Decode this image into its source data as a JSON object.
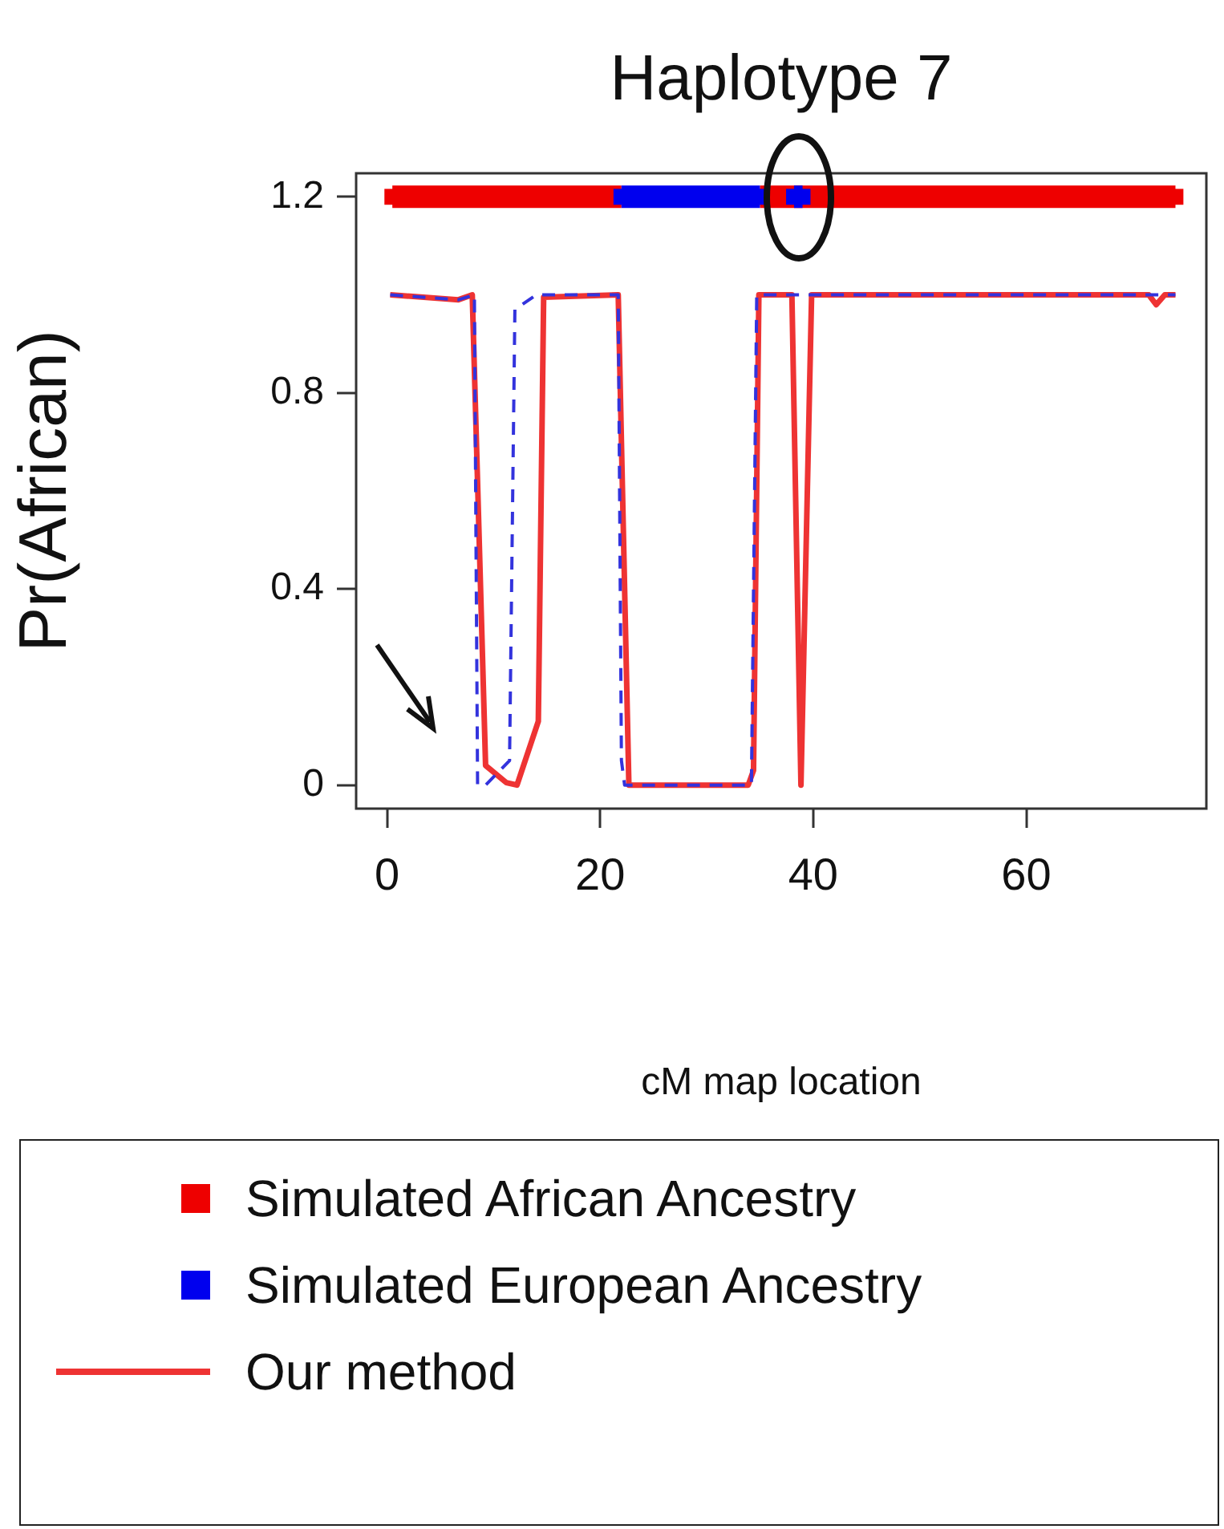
{
  "chart_data": {
    "type": "line",
    "title": "Haplotype 7",
    "xlabel": "cM map location",
    "ylabel": "Pr(African)",
    "xlim": [
      -2.9,
      76.9
    ],
    "ylim": [
      -0.048,
      1.248
    ],
    "xticks": [
      0,
      20,
      40,
      60
    ],
    "yticks": [
      0,
      0.4,
      0.8,
      1.2
    ],
    "grid": false,
    "legend": "bottom",
    "series": [
      {
        "name": "Simulated African Ancestry",
        "marker": "square",
        "color": "#ee0000",
        "x": [
          0.5,
          22,
          28,
          35,
          74
        ],
        "values": [
          1.2,
          1.2,
          null,
          1.2,
          1.2
        ]
      },
      {
        "name": "Simulated European Ancestry",
        "marker": "square",
        "color": "#0000ee",
        "x": [
          22,
          35,
          36.6,
          38.2,
          39.0
        ],
        "values": [
          1.2,
          1.2,
          null,
          1.2,
          1.2
        ]
      },
      {
        "name": "Our method",
        "color": "#ee3333",
        "line_style": "solid",
        "x": [
          0.3,
          6.7,
          8.0,
          9.25,
          11.2,
          12.2,
          14.2,
          14.7,
          21.7,
          22.7,
          33.9,
          34.4,
          34.9,
          38.0,
          38.85,
          39.85,
          71.5,
          72.2,
          73,
          74
        ],
        "values": [
          1.0,
          0.99,
          1.0,
          0.04,
          0.005,
          0,
          0.13,
          0.995,
          1.0,
          0,
          0,
          0.03,
          1.0,
          1.0,
          0,
          1.0,
          1.0,
          0.98,
          1.0,
          1.0
        ]
      },
      {
        "color": "#3333dd",
        "line_style": "dashed",
        "x": [
          0.3,
          6.7,
          8.2,
          8.5,
          9.25,
          11.5,
          12.0,
          14.0,
          21.7,
          22.0,
          22.3,
          34.2,
          34.7,
          74
        ],
        "values": [
          1.0,
          0.99,
          1.0,
          0,
          0,
          0.05,
          0.97,
          1.0,
          1.0,
          0.05,
          0,
          0,
          1.0,
          1.0
        ]
      }
    ]
  }
}
